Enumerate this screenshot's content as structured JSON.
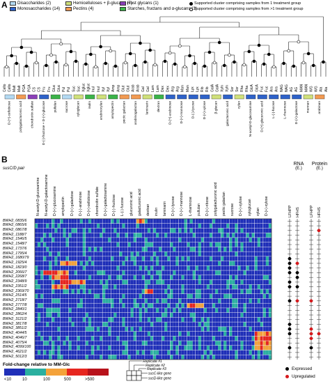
{
  "panel_a": {
    "letter": "A",
    "legend": [
      {
        "label": "Disaccharides (2)",
        "color": "#b3d9f2"
      },
      {
        "label": "Monosaccharides (14)",
        "color": "#2e62c9"
      },
      {
        "label": "Hemicelluloses + β-glucans (7)",
        "color": "#cfe07a"
      },
      {
        "label": "Pectins (4)",
        "color": "#f29a52"
      },
      {
        "label": "Host glycans (1)",
        "color": "#8a3fb8"
      },
      {
        "label": "Starches, fructans and α-glucans (3)",
        "color": "#3bb449"
      }
    ],
    "dot_legend": [
      {
        "label": "Supported cluster comprising samples from 1 treatment group",
        "fill": "#000000"
      },
      {
        "label": "Supported cluster comprising samples from >1 treatment group",
        "fill": "#ffffff"
      }
    ],
    "leaf_labels": [
      "Cello",
      "Cello",
      "Malt",
      "Malt",
      "PGA",
      "PGA",
      "CS",
      "CS",
      "Fru",
      "Fru",
      "Gluc",
      "Gluc",
      "Pul",
      "Pul",
      "Suc",
      "Suc",
      "Xgluc",
      "Xgluc",
      "Inul",
      "Inul",
      "Xyl",
      "Xyl",
      "Amp",
      "Amp",
      "Glut",
      "Glut",
      "Arab",
      "Arab",
      "Gal",
      "Gal",
      "Lam",
      "Lam",
      "Dex",
      "Dex",
      "Arg",
      "Arg",
      "Man",
      "Man",
      "Lyx",
      "Lyx",
      "Rib",
      "Rib",
      "GalA",
      "GalA",
      "Xyln",
      "Xyln",
      "Sor",
      "Sor",
      "Rha",
      "Rha",
      "GlcA",
      "GlcA",
      "Fuc",
      "Fuc",
      "Ara",
      "Ara",
      "NAG",
      "NAG",
      "AG",
      "AG",
      "MAN",
      "MAN",
      "WG",
      "WG",
      "Ala",
      "Ala"
    ],
    "substrates": [
      {
        "name": "D-(+)-cellobiose",
        "color": "#b3d9f2"
      },
      {
        "name": "polygalacturonic acid",
        "color": "#f29a52"
      },
      {
        "name": "chondroitin sulfate",
        "color": "#8a3fb8"
      },
      {
        "name": "D-(-)-fructose + D-(+)-glucose",
        "color": "#2e62c9"
      },
      {
        "name": "pullulan",
        "color": "#3bb449"
      },
      {
        "name": "sucrose",
        "color": "#b3d9f2"
      },
      {
        "name": "xyloglucan",
        "color": "#cfe07a"
      },
      {
        "name": "inulin",
        "color": "#3bb449"
      },
      {
        "name": "arabinoxylan",
        "color": "#cfe07a"
      },
      {
        "name": "amylopectin",
        "color": "#3bb449"
      },
      {
        "name": "pectic galactan",
        "color": "#f29a52"
      },
      {
        "name": "arabinogalactan",
        "color": "#f29a52"
      },
      {
        "name": "laminarin",
        "color": "#cfe07a"
      },
      {
        "name": "dextran",
        "color": "#3bb449"
      },
      {
        "name": "D-(+)-arabinose",
        "color": "#2e62c9"
      },
      {
        "name": "D-(+)-mannose",
        "color": "#2e62c9"
      },
      {
        "name": "D-(-)-lyxose",
        "color": "#2e62c9"
      },
      {
        "name": "D-(+)-xylose",
        "color": "#2e62c9"
      },
      {
        "name": "β-glucan",
        "color": "#cfe07a"
      },
      {
        "name": "galacturonic acid",
        "color": "#2e62c9"
      },
      {
        "name": "xylan",
        "color": "#cfe07a"
      },
      {
        "name": "N-acetyl-D-glucosamine",
        "color": "#2e62c9"
      },
      {
        "name": "D-(+)-glucuronic acid",
        "color": "#2e62c9"
      },
      {
        "name": "L-(-)-fucose",
        "color": "#2e62c9"
      },
      {
        "name": "L-rhamnose",
        "color": "#2e62c9"
      },
      {
        "name": "D-(+)-galactose",
        "color": "#2e62c9"
      },
      {
        "name": "mannan",
        "color": "#cfe07a"
      },
      {
        "name": "arabinan",
        "color": "#f29a52"
      }
    ]
  },
  "panel_b": {
    "letter": "B",
    "pair_header": "susC/D pair",
    "column_labels": [
      "N-acetyl-D-glucosamine",
      "N-acetyl-D-galactosamine",
      "D-(+)-glucosamine",
      "amylopectin",
      "D-(+)-galactose",
      "D-(-)-arabinose",
      "D-(+)-cellobiose",
      "chondroitin sulfate",
      "D-(+)-galactosamine",
      "D-(-)-fructose",
      "L-(-)-fucose",
      "glucuronic acid",
      "galacturonic acid",
      "dextran",
      "inulin",
      "laminarin",
      "D-(+)-lyxose",
      "D-(+)-mannose",
      "L-rhamnose",
      "pullulan",
      "D-(+)-ribose",
      "polygalacturonic acid",
      "pectic galactan",
      "sucrose",
      "D-(+)-xylose",
      "xyloglucan",
      "xylan",
      "D-(+)-xylose"
    ],
    "rows": [
      "BWH2_0835/6",
      "BWH2_0865/6",
      "BWH2_0867/8",
      "BWH2_1188/7",
      "BWH2_1546/5",
      "BWH2_1548/7",
      "BWH2_1737/6",
      "BWH2_1795/4",
      "BWH2_1680/79",
      "BWH2_1925/4",
      "BWH2_1823/0",
      "BWH2_2066/7",
      "BWH2_2268/7",
      "BWH2_2348/9",
      "BWH2_2351/2",
      "BWH2_2369/70",
      "BWH2_2514/5",
      "BWH2_2718/7",
      "BWH2_2777/8",
      "BWH2_2840/1",
      "BWH2_2862/4",
      "BWH2_3121/2",
      "BWH2_3817/8",
      "BWH2_3851/2",
      "BWH2_4044/5",
      "BWH2_4046/7",
      "BWH2_4075/4",
      "BWH2_4099/100",
      "BWH2_4621/2",
      "BWH2_5012/3"
    ],
    "rna_header": "RNA",
    "rna_sub": "(E.)",
    "protein_header": "Protein",
    "protein_sub": "(E.)",
    "cond_labels": [
      "LFHPP",
      "HFHS"
    ],
    "rna_marks": [
      [
        "",
        "",
        ""
      ],
      [
        "",
        "",
        ""
      ],
      [
        "",
        "",
        ""
      ],
      [
        "",
        "",
        ""
      ],
      [
        "",
        "",
        ""
      ],
      [
        "",
        "",
        ""
      ],
      [
        "",
        "",
        ""
      ],
      [
        "",
        "",
        ""
      ],
      [
        "E",
        "",
        ""
      ],
      [
        "E",
        "U",
        ""
      ],
      [
        "E",
        "",
        ""
      ],
      [
        "E",
        "E",
        ""
      ],
      [
        "",
        "E",
        ""
      ],
      [
        "E",
        "",
        ""
      ],
      [
        "E",
        "E",
        ""
      ],
      [
        "",
        "",
        ""
      ],
      [
        "",
        "",
        ""
      ],
      [
        "E",
        "U",
        ""
      ],
      [
        "",
        "",
        ""
      ],
      [
        "",
        "",
        ""
      ],
      [
        "",
        "",
        ""
      ],
      [
        "",
        "",
        ""
      ],
      [
        "E",
        "",
        ""
      ],
      [
        "E",
        "",
        ""
      ],
      [
        "E",
        "",
        ""
      ],
      [
        "",
        "",
        ""
      ],
      [
        "",
        "",
        ""
      ],
      [
        "E",
        "",
        ""
      ],
      [
        "",
        "",
        ""
      ],
      [
        "",
        "",
        ""
      ]
    ],
    "protein_marks": [
      [
        "",
        "",
        ""
      ],
      [
        "",
        "",
        ""
      ],
      [
        "",
        "U",
        ""
      ],
      [
        "",
        "",
        ""
      ],
      [
        "",
        "",
        ""
      ],
      [
        "",
        "",
        ""
      ],
      [
        "",
        "",
        ""
      ],
      [
        "",
        "",
        ""
      ],
      [
        "",
        "",
        ""
      ],
      [
        "",
        "",
        ""
      ],
      [
        "",
        "",
        ""
      ],
      [
        "",
        "",
        ""
      ],
      [
        "",
        "",
        ""
      ],
      [
        "",
        "",
        ""
      ],
      [
        "",
        "",
        ""
      ],
      [
        "",
        "",
        ""
      ],
      [
        "",
        "",
        ""
      ],
      [
        "U",
        "",
        ""
      ],
      [
        "",
        "",
        ""
      ],
      [
        "",
        "",
        ""
      ],
      [
        "",
        "",
        ""
      ],
      [
        "",
        "",
        ""
      ],
      [
        "",
        "",
        ""
      ],
      [
        "U",
        "",
        ""
      ],
      [
        "U",
        "U",
        ""
      ],
      [
        "U",
        "",
        ""
      ],
      [
        "",
        "",
        ""
      ],
      [
        "E",
        "",
        ""
      ],
      [
        "",
        "",
        ""
      ],
      [
        "",
        "",
        ""
      ]
    ],
    "dot_legend": [
      {
        "label": "Expressed",
        "fill": "#000000"
      },
      {
        "label": "Upregulated",
        "fill": "#d7191c"
      }
    ],
    "fold_change_title": "Fold-change relative to MM-Glc",
    "fold_scale": [
      {
        "label": "<10",
        "color": "#1f2fb8"
      },
      {
        "label": "10",
        "color": "#2bb0a0"
      },
      {
        "label": "100",
        "color": "#f4a23a"
      },
      {
        "label": "500",
        "color": "#e6261f"
      },
      {
        "label": ">500",
        "color": "#b8121b"
      }
    ],
    "replicate_labels": [
      "Replicate #1",
      "Replicate #2",
      "Replicate #3",
      "susC-like gene",
      "susD-like gene"
    ]
  }
}
